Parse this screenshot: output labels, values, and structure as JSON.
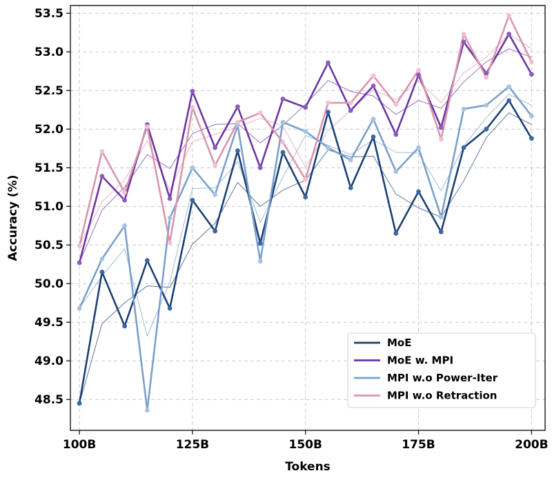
{
  "chart_data": {
    "type": "line",
    "xlabel": "Tokens",
    "ylabel": "Accuracy (%)",
    "xlim": [
      98,
      203
    ],
    "ylim": [
      48.1,
      53.6
    ],
    "x_ticks": [
      100,
      125,
      150,
      175,
      200
    ],
    "x_tick_labels": [
      "100B",
      "125B",
      "150B",
      "175B",
      "200B"
    ],
    "y_ticks": [
      48.5,
      49.0,
      49.5,
      50.0,
      50.5,
      51.0,
      51.5,
      52.0,
      52.5,
      53.0,
      53.5
    ],
    "y_tick_labels": [
      "48.5",
      "49.0",
      "49.5",
      "50.0",
      "50.5",
      "51.0",
      "51.5",
      "52.0",
      "52.5",
      "53.0",
      "53.5"
    ],
    "grid": true,
    "legend_position": "bottom-right",
    "x": [
      100,
      105,
      110,
      115,
      120,
      125,
      130,
      135,
      140,
      145,
      150,
      155,
      160,
      165,
      170,
      175,
      180,
      185,
      190,
      195,
      200
    ],
    "series": [
      {
        "name": "MoE",
        "color": "#1b3f73",
        "marker_color": "#3a66a6",
        "values": [
          48.45,
          50.15,
          49.45,
          50.3,
          49.68,
          51.08,
          50.68,
          51.72,
          50.52,
          51.7,
          51.12,
          52.22,
          51.24,
          51.9,
          50.65,
          51.19,
          50.67,
          51.76,
          52.0,
          52.37,
          51.88
        ],
        "smooth": [
          48.45,
          49.48,
          49.75,
          49.97,
          49.95,
          50.51,
          50.78,
          51.31,
          51.0,
          51.21,
          51.34,
          51.73,
          51.64,
          51.65,
          51.16,
          50.98,
          50.86,
          51.33,
          51.89,
          52.21,
          52.06
        ]
      },
      {
        "name": "MoE w. MPI",
        "color": "#6a35a0",
        "marker_color": "#8a5cc0",
        "values": [
          50.27,
          51.39,
          51.08,
          52.06,
          51.1,
          52.49,
          51.76,
          52.29,
          51.5,
          52.39,
          52.28,
          52.86,
          52.24,
          52.56,
          51.93,
          52.7,
          52.02,
          53.13,
          52.72,
          53.23,
          52.71
        ],
        "smooth": [
          50.27,
          50.95,
          51.25,
          51.67,
          51.49,
          51.94,
          52.06,
          52.07,
          51.82,
          52.05,
          52.32,
          52.63,
          52.49,
          52.43,
          52.19,
          52.37,
          52.27,
          52.61,
          52.87,
          53.04,
          52.93
        ]
      },
      {
        "name": "MPI w.o Power-Iter",
        "color": "#7aa0cc",
        "marker_color": "#a6c3e2",
        "values": [
          49.68,
          50.32,
          50.75,
          48.36,
          50.85,
          51.5,
          51.15,
          52.05,
          50.29,
          52.09,
          51.97,
          51.76,
          51.6,
          52.13,
          51.45,
          51.76,
          50.86,
          52.26,
          52.31,
          52.55,
          52.17
        ],
        "smooth": [
          49.68,
          50.1,
          50.45,
          49.32,
          50.02,
          51.23,
          51.24,
          51.58,
          50.79,
          51.38,
          51.92,
          51.79,
          51.67,
          51.86,
          51.7,
          51.69,
          51.2,
          51.78,
          52.15,
          52.45,
          52.31
        ]
      },
      {
        "name": "MPI w.o Retraction",
        "color": "#d995ad",
        "marker_color": "#f2bfd3",
        "values": [
          50.49,
          51.71,
          51.18,
          52.03,
          50.53,
          52.28,
          51.53,
          52.09,
          52.21,
          51.83,
          51.35,
          52.34,
          52.34,
          52.69,
          52.32,
          52.76,
          51.87,
          53.23,
          52.67,
          53.47,
          52.87
        ],
        "smooth": [
          50.49,
          51.06,
          51.34,
          51.85,
          51.21,
          51.84,
          51.93,
          52.03,
          52.14,
          52.04,
          51.51,
          51.98,
          52.24,
          52.51,
          52.38,
          52.63,
          52.34,
          52.73,
          52.93,
          53.23,
          53.04
        ]
      }
    ]
  }
}
